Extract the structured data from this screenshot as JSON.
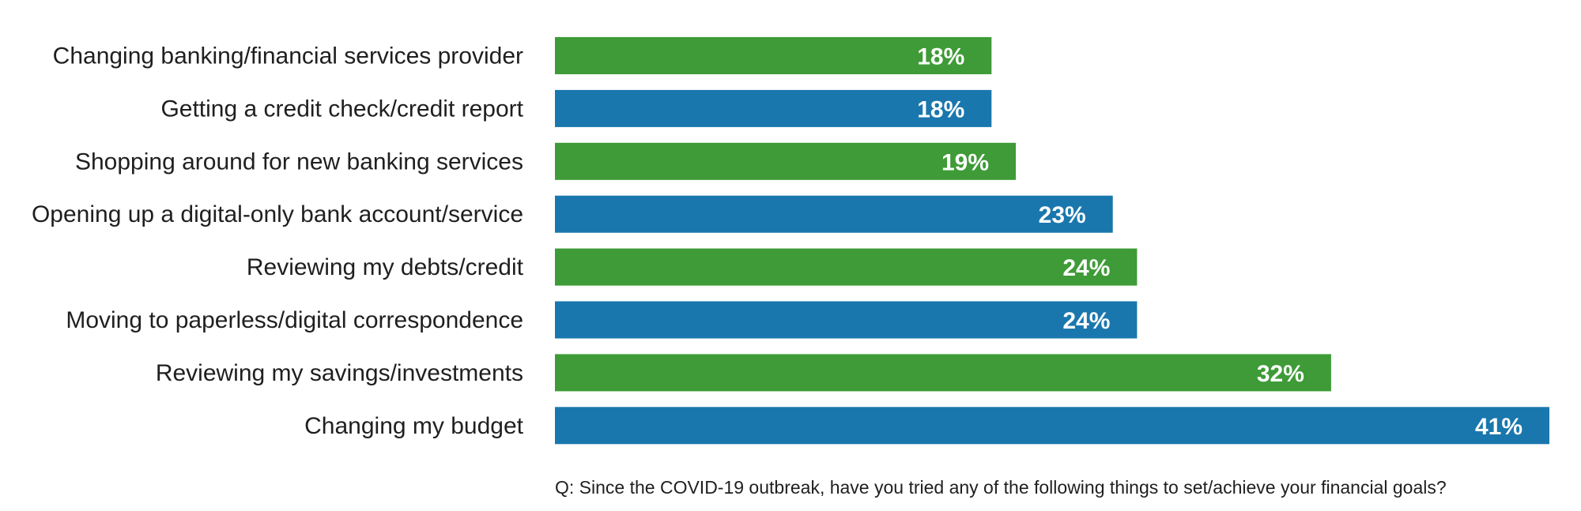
{
  "chart_data": {
    "type": "bar",
    "orientation": "horizontal",
    "categories": [
      "Changing banking/financial services provider",
      "Getting a credit check/credit report",
      "Shopping around for new banking services",
      "Opening up a digital-only bank account/service",
      "Reviewing my debts/credit",
      "Moving to paperless/digital correspondence",
      "Reviewing my savings/investments",
      "Changing my budget"
    ],
    "values": [
      18,
      18,
      19,
      23,
      24,
      24,
      32,
      41
    ],
    "value_labels": [
      "18%",
      "18%",
      "19%",
      "23%",
      "24%",
      "24%",
      "32%",
      "41%"
    ],
    "bar_colors": [
      "#3e9b37",
      "#1a77ad",
      "#3e9b37",
      "#1a77ad",
      "#3e9b37",
      "#1a77ad",
      "#3e9b37",
      "#1a77ad"
    ],
    "unit": "%",
    "xlim": [
      0,
      41
    ],
    "grid": false,
    "legend": "none",
    "note": "Q: Since the COVID-19 outbreak, have you tried any of the following things to set/achieve your financial goals?"
  }
}
